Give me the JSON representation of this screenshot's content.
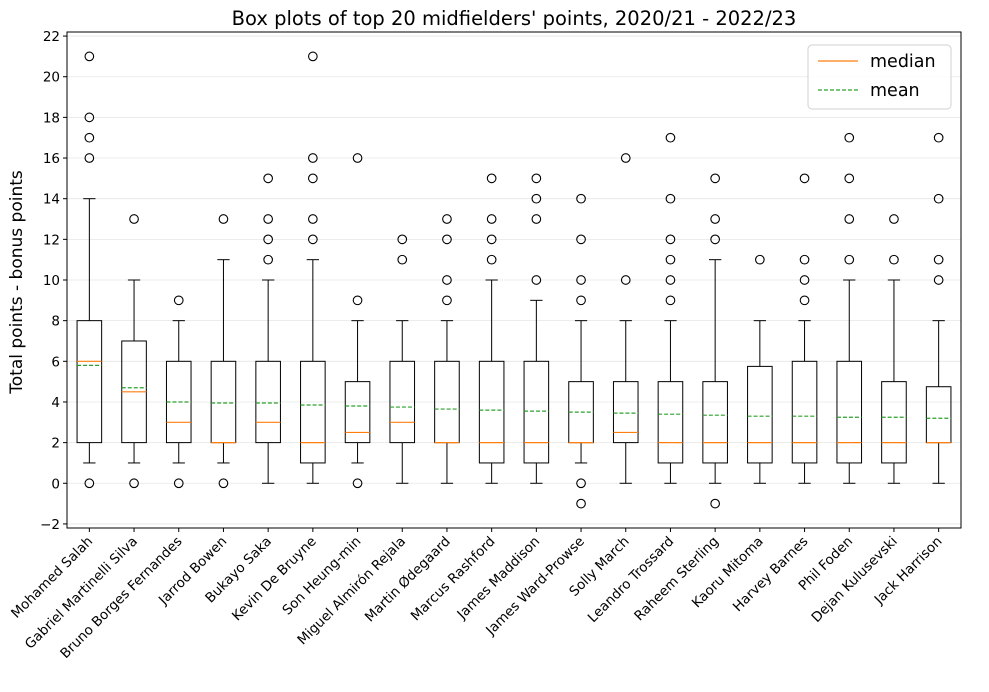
{
  "chart_data": {
    "type": "box",
    "title": "Box plots of top 20 midfielders' points, 2020/21 - 2022/23",
    "xlabel": "",
    "ylabel": "Total points - bonus points",
    "ylim": [
      -2.2,
      22.2
    ],
    "yticks": [
      -2,
      0,
      2,
      4,
      6,
      8,
      10,
      12,
      14,
      16,
      18,
      20,
      22
    ],
    "ytick_labels": [
      "−2",
      "0",
      "2",
      "4",
      "6",
      "8",
      "10",
      "12",
      "14",
      "16",
      "18",
      "20",
      "22"
    ],
    "grid": "horizontal",
    "legend_position": "top-right",
    "legend": [
      {
        "label": "median",
        "color": "#ff7f0e",
        "style": "solid"
      },
      {
        "label": "mean",
        "color": "#2ca02c",
        "style": "dashed"
      }
    ],
    "players": [
      {
        "name": "Mohamed Salah",
        "whisker_low": 1,
        "q1": 2,
        "median": 6,
        "q3": 8,
        "whisker_high": 14,
        "mean": 5.8,
        "outliers": [
          0,
          16,
          17,
          18,
          21
        ]
      },
      {
        "name": "Gabriel Martinelli Silva",
        "whisker_low": 1,
        "q1": 2,
        "median": 4.5,
        "q3": 7,
        "whisker_high": 10,
        "mean": 4.7,
        "outliers": [
          0,
          13
        ]
      },
      {
        "name": "Bruno Borges Fernandes",
        "whisker_low": 1,
        "q1": 2,
        "median": 3,
        "q3": 6,
        "whisker_high": 8,
        "mean": 4.0,
        "outliers": [
          0,
          9
        ]
      },
      {
        "name": "Jarrod Bowen",
        "whisker_low": 1,
        "q1": 2,
        "median": 2,
        "q3": 6,
        "whisker_high": 11,
        "mean": 3.95,
        "outliers": [
          0,
          13
        ]
      },
      {
        "name": "Bukayo Saka",
        "whisker_low": 0,
        "q1": 2,
        "median": 3,
        "q3": 6,
        "whisker_high": 10,
        "mean": 3.95,
        "outliers": [
          11,
          12,
          13,
          15
        ]
      },
      {
        "name": "Kevin De Bruyne",
        "whisker_low": 0,
        "q1": 1,
        "median": 2,
        "q3": 6,
        "whisker_high": 11,
        "mean": 3.85,
        "outliers": [
          12,
          13,
          15,
          16,
          21
        ]
      },
      {
        "name": "Son Heung-min",
        "whisker_low": 1,
        "q1": 2,
        "median": 2.5,
        "q3": 5,
        "whisker_high": 8,
        "mean": 3.8,
        "outliers": [
          0,
          9,
          16
        ]
      },
      {
        "name": "Miguel Almirón Rejala",
        "whisker_low": 0,
        "q1": 2,
        "median": 3,
        "q3": 6,
        "whisker_high": 8,
        "mean": 3.75,
        "outliers": [
          11,
          12
        ]
      },
      {
        "name": "Martin Ødegaard",
        "whisker_low": 0,
        "q1": 2,
        "median": 2,
        "q3": 6,
        "whisker_high": 8,
        "mean": 3.65,
        "outliers": [
          9,
          10,
          12,
          13
        ]
      },
      {
        "name": "Marcus Rashford",
        "whisker_low": 0,
        "q1": 1,
        "median": 2,
        "q3": 6,
        "whisker_high": 10,
        "mean": 3.6,
        "outliers": [
          11,
          12,
          13,
          15
        ]
      },
      {
        "name": "James Maddison",
        "whisker_low": 0,
        "q1": 1,
        "median": 2,
        "q3": 6,
        "whisker_high": 9,
        "mean": 3.55,
        "outliers": [
          10,
          13,
          14,
          15
        ]
      },
      {
        "name": "James Ward-Prowse",
        "whisker_low": 1,
        "q1": 2,
        "median": 2,
        "q3": 5,
        "whisker_high": 8,
        "mean": 3.5,
        "outliers": [
          -1,
          0,
          9,
          10,
          12,
          14
        ]
      },
      {
        "name": "Solly March",
        "whisker_low": 0,
        "q1": 2,
        "median": 2.5,
        "q3": 5,
        "whisker_high": 8,
        "mean": 3.45,
        "outliers": [
          10,
          16
        ]
      },
      {
        "name": "Leandro Trossard",
        "whisker_low": 0,
        "q1": 1,
        "median": 2,
        "q3": 5,
        "whisker_high": 8,
        "mean": 3.4,
        "outliers": [
          9,
          10,
          11,
          12,
          14,
          17
        ]
      },
      {
        "name": "Raheem Sterling",
        "whisker_low": 0,
        "q1": 1,
        "median": 2,
        "q3": 5,
        "whisker_high": 11,
        "mean": 3.35,
        "outliers": [
          -1,
          12,
          13,
          15
        ]
      },
      {
        "name": "Kaoru Mitoma",
        "whisker_low": 0,
        "q1": 1,
        "median": 2,
        "q3": 5.75,
        "whisker_high": 8,
        "mean": 3.3,
        "outliers": [
          11
        ]
      },
      {
        "name": "Harvey Barnes",
        "whisker_low": 0,
        "q1": 1,
        "median": 2,
        "q3": 6,
        "whisker_high": 8,
        "mean": 3.3,
        "outliers": [
          9,
          10,
          11,
          15
        ]
      },
      {
        "name": "Phil Foden",
        "whisker_low": 0,
        "q1": 1,
        "median": 2,
        "q3": 6,
        "whisker_high": 10,
        "mean": 3.25,
        "outliers": [
          11,
          13,
          15,
          17
        ]
      },
      {
        "name": "Dejan Kulusevski",
        "whisker_low": 0,
        "q1": 1,
        "median": 2,
        "q3": 5,
        "whisker_high": 10,
        "mean": 3.25,
        "outliers": [
          11,
          13
        ]
      },
      {
        "name": "Jack Harrison",
        "whisker_low": 0,
        "q1": 2,
        "median": 2,
        "q3": 4.75,
        "whisker_high": 8,
        "mean": 3.2,
        "outliers": [
          10,
          11,
          14,
          17
        ]
      }
    ]
  }
}
